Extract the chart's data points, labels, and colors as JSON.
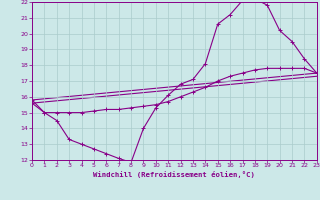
{
  "xlabel": "Windchill (Refroidissement éolien,°C)",
  "xlim": [
    0,
    23
  ],
  "ylim": [
    12,
    22
  ],
  "xticks": [
    0,
    1,
    2,
    3,
    4,
    5,
    6,
    7,
    8,
    9,
    10,
    11,
    12,
    13,
    14,
    15,
    16,
    17,
    18,
    19,
    20,
    21,
    22,
    23
  ],
  "yticks": [
    12,
    13,
    14,
    15,
    16,
    17,
    18,
    19,
    20,
    21,
    22
  ],
  "bg": "#cce8e8",
  "grid_color": "#aacccc",
  "lc": "#880088",
  "lw": 0.8,
  "ms": 3.0,
  "curve1_x": [
    0,
    1,
    2,
    3,
    4,
    5,
    6,
    7,
    8,
    9,
    10,
    11,
    12,
    13,
    14,
    15,
    16,
    17,
    18,
    19,
    20,
    21,
    22,
    23
  ],
  "curve1_y": [
    15.8,
    15.0,
    14.5,
    13.3,
    13.0,
    12.7,
    12.4,
    12.1,
    11.85,
    14.0,
    15.3,
    16.1,
    16.8,
    17.1,
    18.1,
    20.6,
    21.2,
    22.1,
    22.2,
    21.8,
    20.2,
    19.5,
    18.4,
    17.5
  ],
  "curve2_x": [
    0,
    1,
    2,
    3,
    4,
    5,
    6,
    7,
    8,
    9,
    10,
    11,
    12,
    13,
    14,
    15,
    16,
    17,
    18,
    19,
    20,
    21,
    22,
    23
  ],
  "curve2_y": [
    15.6,
    15.0,
    15.0,
    15.0,
    15.0,
    15.1,
    15.2,
    15.2,
    15.3,
    15.4,
    15.5,
    15.7,
    16.0,
    16.3,
    16.6,
    17.0,
    17.3,
    17.5,
    17.7,
    17.8,
    17.8,
    17.8,
    17.8,
    17.5
  ],
  "line1_x": [
    0,
    23
  ],
  "line1_y": [
    15.8,
    17.5
  ],
  "line2_x": [
    0,
    23
  ],
  "line2_y": [
    15.6,
    17.3
  ]
}
